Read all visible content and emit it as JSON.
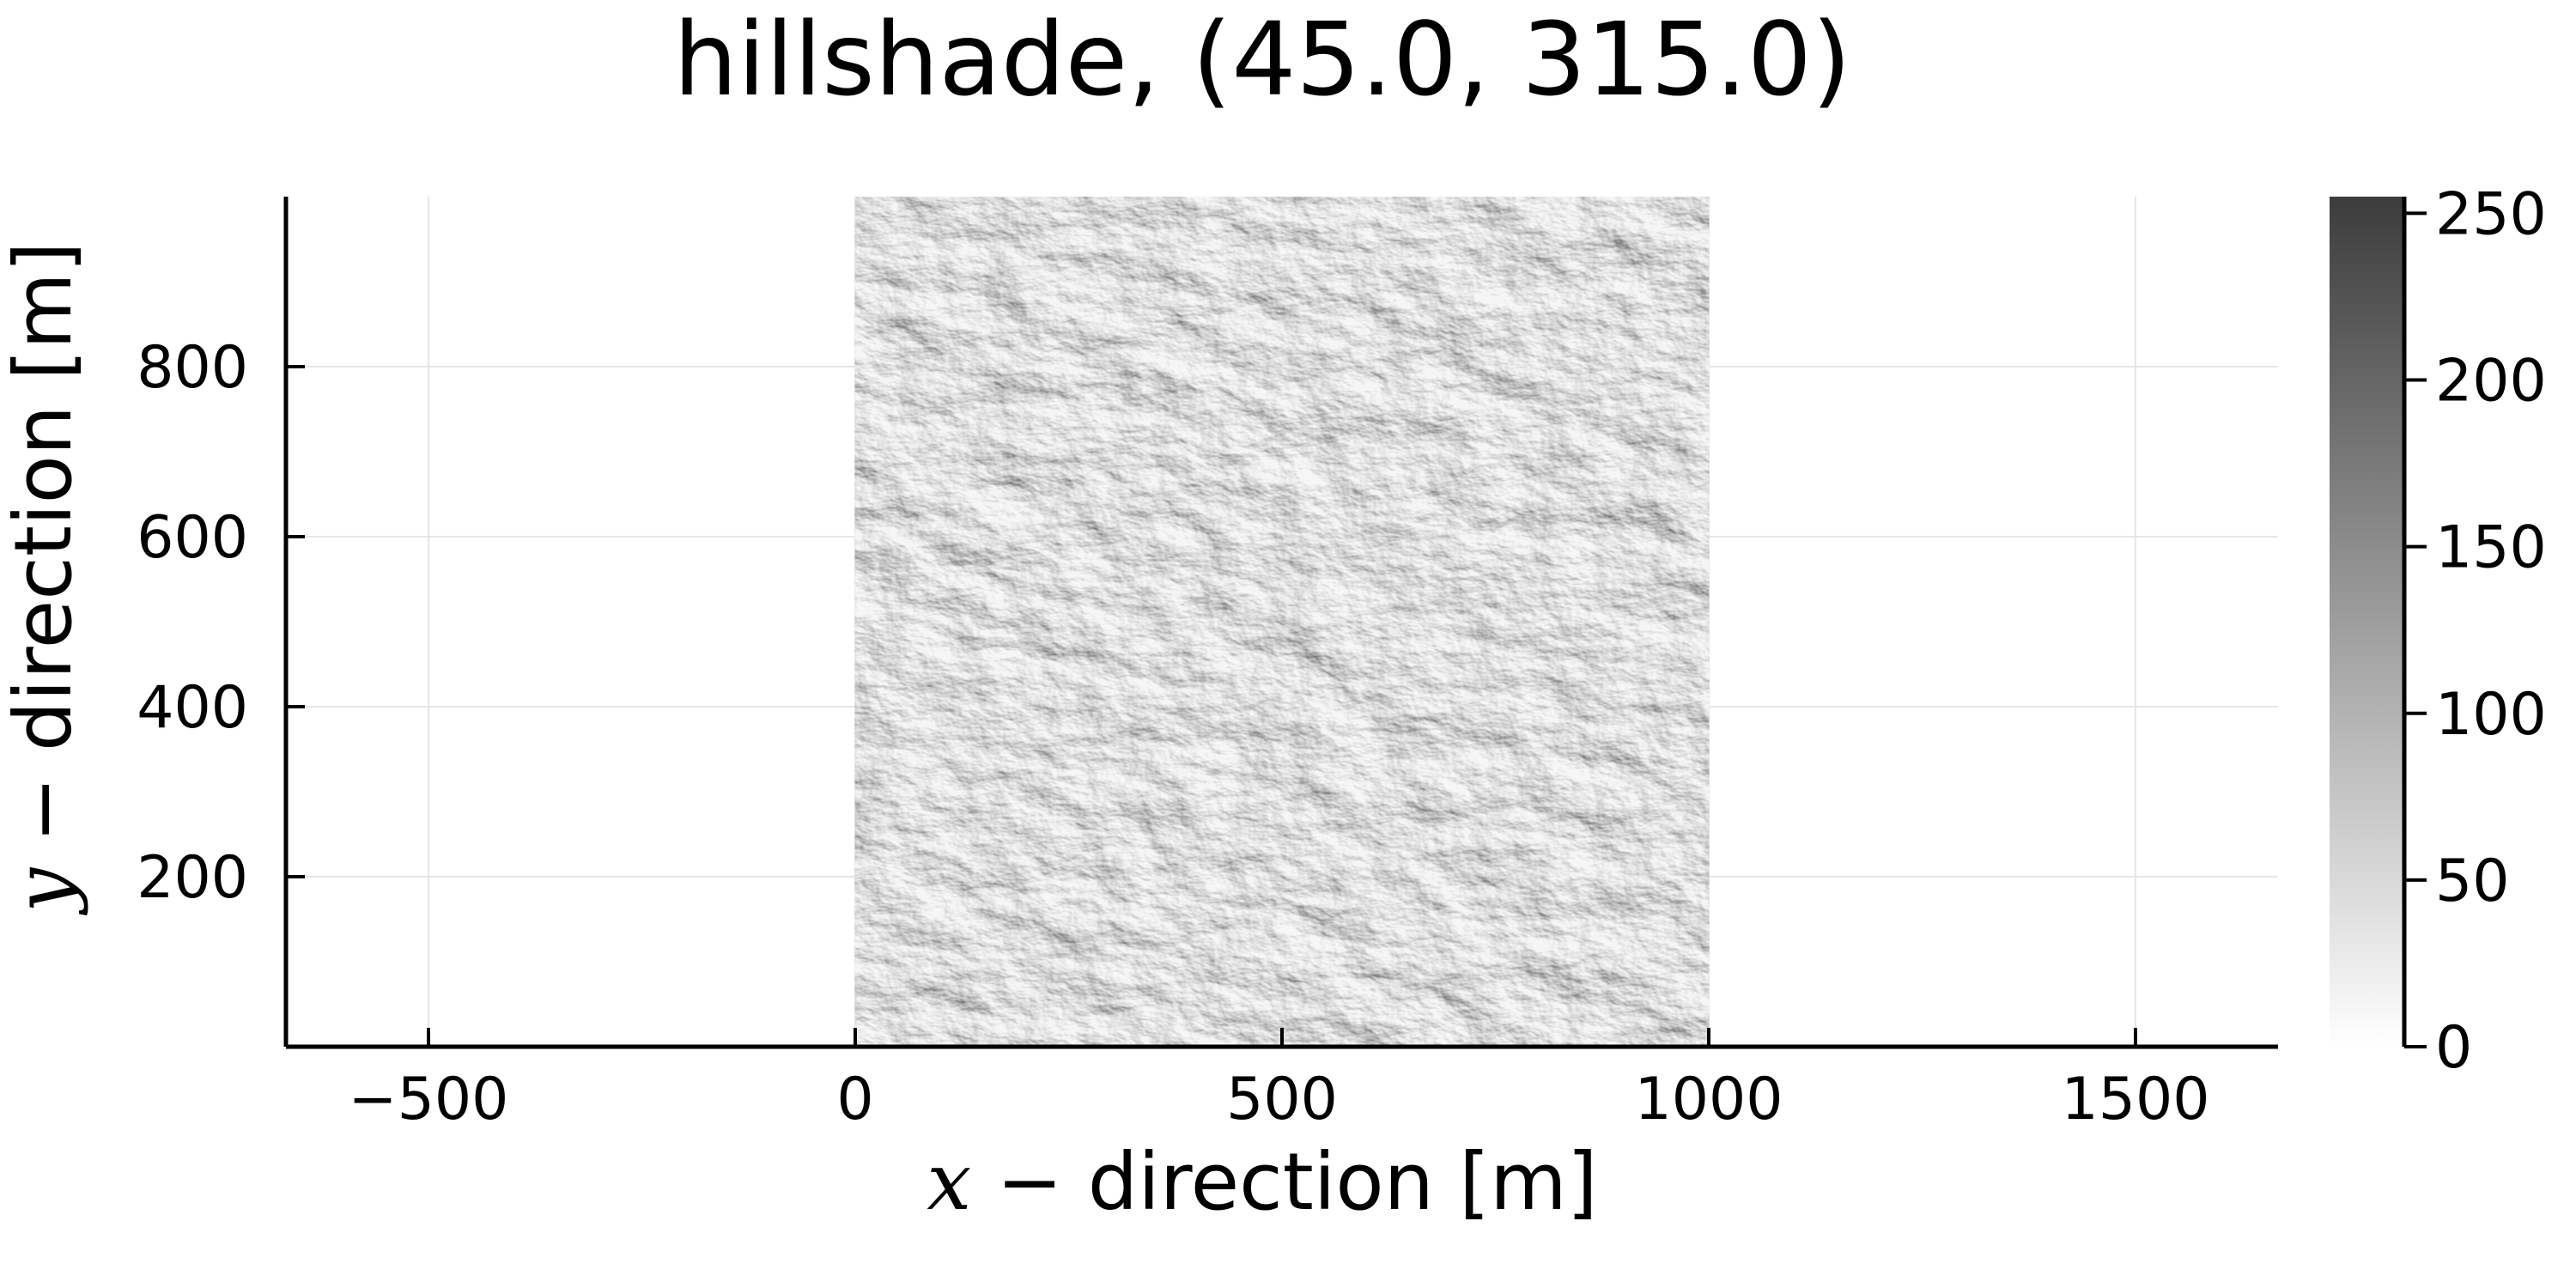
{
  "chart_data": {
    "type": "heatmap",
    "title": "hillshade, (45.0, 315.0)",
    "xlabel": {
      "math": "x",
      "text": " − direction [m]"
    },
    "ylabel": {
      "math": "y",
      "text": " − direction [m]"
    },
    "xlim": [
      -667,
      1667
    ],
    "ylim": [
      0,
      1000
    ],
    "xticks": [
      -500,
      0,
      500,
      1000,
      1500
    ],
    "xtick_labels": [
      "−500",
      "0",
      "500",
      "1000",
      "1500"
    ],
    "yticks": [
      200,
      400,
      600,
      800
    ],
    "ytick_labels": [
      "200",
      "400",
      "600",
      "800"
    ],
    "grid": true,
    "image_extent": {
      "x": [
        0,
        1000
      ],
      "y": [
        0,
        1000
      ]
    },
    "colorbar": {
      "range": [
        0,
        255
      ],
      "ticks": [
        0,
        50,
        100,
        150,
        200,
        250
      ],
      "tick_labels": [
        "0",
        "50",
        "100",
        "150",
        "200",
        "250"
      ],
      "colormap": [
        "#ffffff",
        "#3c3c3c"
      ]
    },
    "colors": {
      "background": "#ffffff",
      "grid": "#e6e6e6",
      "axis": "#000000"
    }
  }
}
